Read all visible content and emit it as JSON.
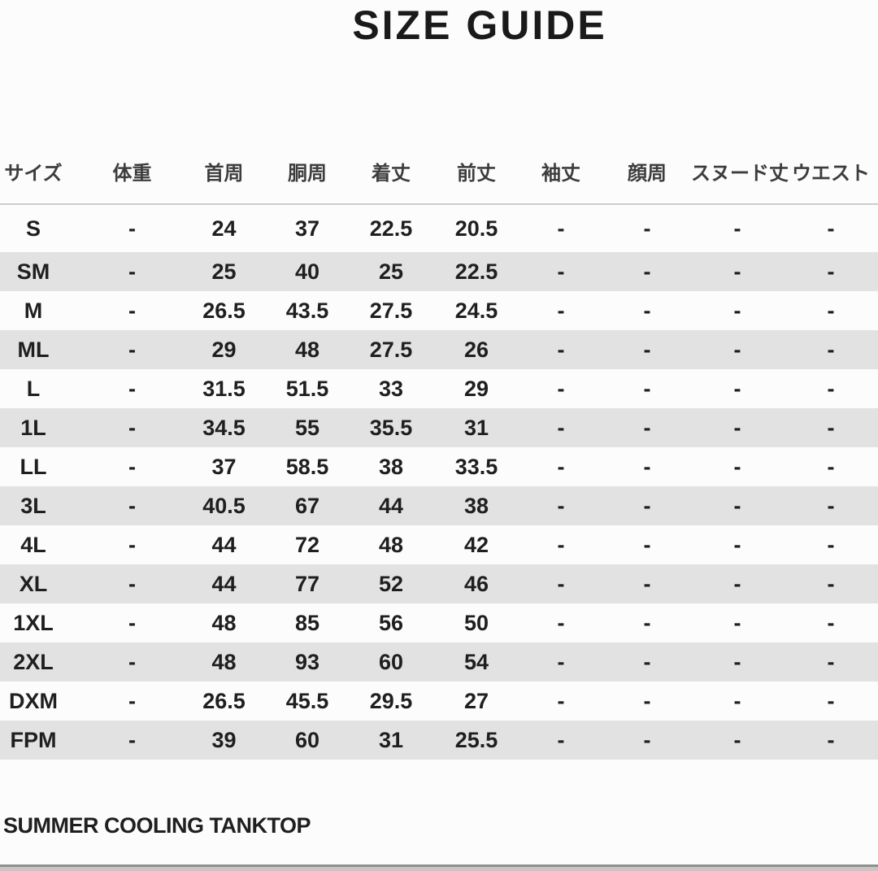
{
  "title": "SIZE GUIDE",
  "table": {
    "columns": [
      "サイズ",
      "体重",
      "首周",
      "胴周",
      "着丈",
      "前丈",
      "袖丈",
      "顔周",
      "スヌード丈",
      "ウエスト"
    ],
    "rows": [
      [
        "S",
        "-",
        "24",
        "37",
        "22.5",
        "20.5",
        "-",
        "-",
        "-",
        "-"
      ],
      [
        "SM",
        "-",
        "25",
        "40",
        "25",
        "22.5",
        "-",
        "-",
        "-",
        "-"
      ],
      [
        "M",
        "-",
        "26.5",
        "43.5",
        "27.5",
        "24.5",
        "-",
        "-",
        "-",
        "-"
      ],
      [
        "ML",
        "-",
        "29",
        "48",
        "27.5",
        "26",
        "-",
        "-",
        "-",
        "-"
      ],
      [
        "L",
        "-",
        "31.5",
        "51.5",
        "33",
        "29",
        "-",
        "-",
        "-",
        "-"
      ],
      [
        "1L",
        "-",
        "34.5",
        "55",
        "35.5",
        "31",
        "-",
        "-",
        "-",
        "-"
      ],
      [
        "LL",
        "-",
        "37",
        "58.5",
        "38",
        "33.5",
        "-",
        "-",
        "-",
        "-"
      ],
      [
        "3L",
        "-",
        "40.5",
        "67",
        "44",
        "38",
        "-",
        "-",
        "-",
        "-"
      ],
      [
        "4L",
        "-",
        "44",
        "72",
        "48",
        "42",
        "-",
        "-",
        "-",
        "-"
      ],
      [
        "XL",
        "-",
        "44",
        "77",
        "52",
        "46",
        "-",
        "-",
        "-",
        "-"
      ],
      [
        "1XL",
        "-",
        "48",
        "85",
        "56",
        "50",
        "-",
        "-",
        "-",
        "-"
      ],
      [
        "2XL",
        "-",
        "48",
        "93",
        "60",
        "54",
        "-",
        "-",
        "-",
        "-"
      ],
      [
        "DXM",
        "-",
        "26.5",
        "45.5",
        "29.5",
        "27",
        "-",
        "-",
        "-",
        "-"
      ],
      [
        "FPM",
        "-",
        "39",
        "60",
        "31",
        "25.5",
        "-",
        "-",
        "-",
        "-"
      ]
    ]
  },
  "footer": {
    "product_name": "SUMMER COOLING TANKTOP"
  },
  "colors": {
    "bg": "#fcfcfc",
    "stripe": "#e2e2e2",
    "divider": "#cbcbcb",
    "text_title": "#1a1a1a",
    "text_header": "#3d3d3d",
    "text_primary": "#1f1f1f",
    "bottom_bar": "#c6c6c6",
    "bottom_bar_edge": "#8f8f8f"
  }
}
